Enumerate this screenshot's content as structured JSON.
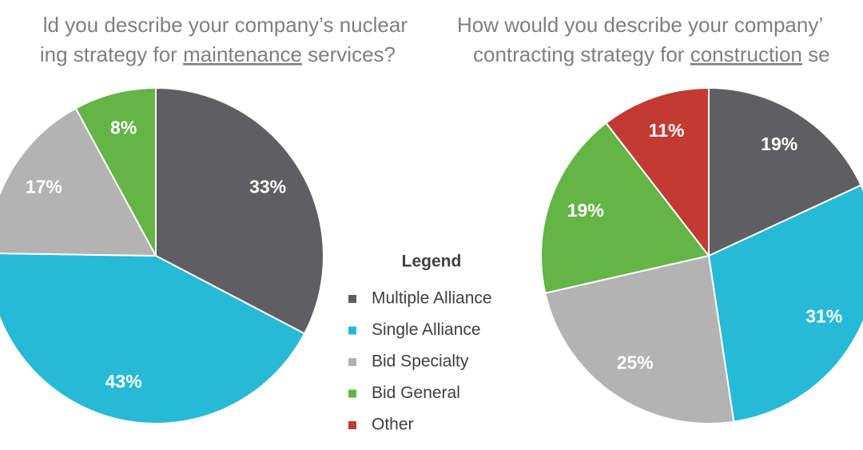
{
  "chart_data": [
    {
      "type": "pie",
      "title_lines": [
        [
          "ld you describe your company’s nuclear"
        ],
        [
          "ing strategy for ",
          "maintenance",
          " services?"
        ]
      ],
      "title_underline": [
        1,
        1
      ],
      "categories": [
        "Multiple Alliance",
        "Single Alliance",
        "Bid Specialty",
        "Bid General"
      ],
      "values": [
        33,
        43,
        17,
        8
      ],
      "value_labels": [
        "33%",
        "43%",
        "17%",
        "8%"
      ],
      "colors": [
        "#5f5f61",
        "#27bad7",
        "#b3b3b3",
        "#63b546"
      ]
    },
    {
      "type": "pie",
      "title_lines": [
        [
          "How would you describe your company’"
        ],
        [
          "contracting strategy for ",
          "construction",
          " se"
        ]
      ],
      "title_underline": [
        1,
        1
      ],
      "categories": [
        "Multiple Alliance",
        "Single Alliance",
        "Bid Specialty",
        "Bid General",
        "Other"
      ],
      "values": [
        19,
        31,
        25,
        19,
        11
      ],
      "value_labels": [
        "19%",
        "31%",
        "25%",
        "19%",
        "11%"
      ],
      "colors": [
        "#5f5f61",
        "#27bad7",
        "#b3b3b3",
        "#63b546",
        "#c33a33"
      ]
    }
  ],
  "legend": {
    "title": "Legend"
  }
}
